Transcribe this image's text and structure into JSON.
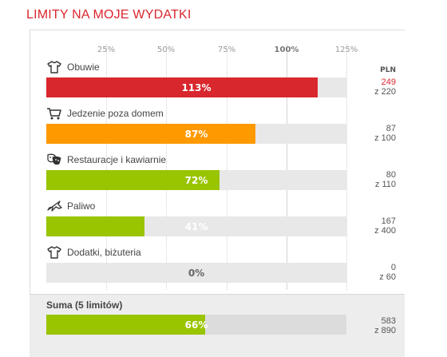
{
  "title": "LIMITY NA MOJE WYDATKI",
  "scale": {
    "ticks": [
      "25%",
      "50%",
      "75%",
      "100%",
      "125%"
    ],
    "tick_values": [
      25,
      50,
      75,
      100,
      125
    ],
    "max_percent": 125
  },
  "currency_header": "PLN",
  "colors": {
    "title": "#d9272e",
    "over": "#d9272e",
    "warn": "#ff9900",
    "ok": "#99c400",
    "track": "#e8e8e8"
  },
  "limits": [
    {
      "label": "Obuwie",
      "icon": "tshirt-icon",
      "percent_text": "113%",
      "percent": 113,
      "spent": "249",
      "limit": "z 220",
      "status": "over"
    },
    {
      "label": "Jedzenie poza domem",
      "icon": "cart-icon",
      "percent_text": "87%",
      "percent": 87,
      "spent": "87",
      "limit": "z 100",
      "status": "warn"
    },
    {
      "label": "Restauracje i kawiarnie",
      "icon": "masks-icon",
      "percent_text": "72%",
      "percent": 72,
      "spent": "80",
      "limit": "z 110",
      "status": "ok"
    },
    {
      "label": "Paliwo",
      "icon": "plane-icon",
      "percent_text": "41%",
      "percent": 41,
      "spent": "167",
      "limit": "z 400",
      "status": "ok"
    },
    {
      "label": "Dodatki, biżuteria",
      "icon": "tshirt-icon",
      "percent_text": "0%",
      "percent": 0,
      "spent": "0",
      "limit": "z 60",
      "status": "ok"
    }
  ],
  "summary": {
    "label": "Suma (5 limitów)",
    "percent_text": "66%",
    "percent": 66,
    "spent": "583",
    "limit": "z 890",
    "status": "ok"
  }
}
